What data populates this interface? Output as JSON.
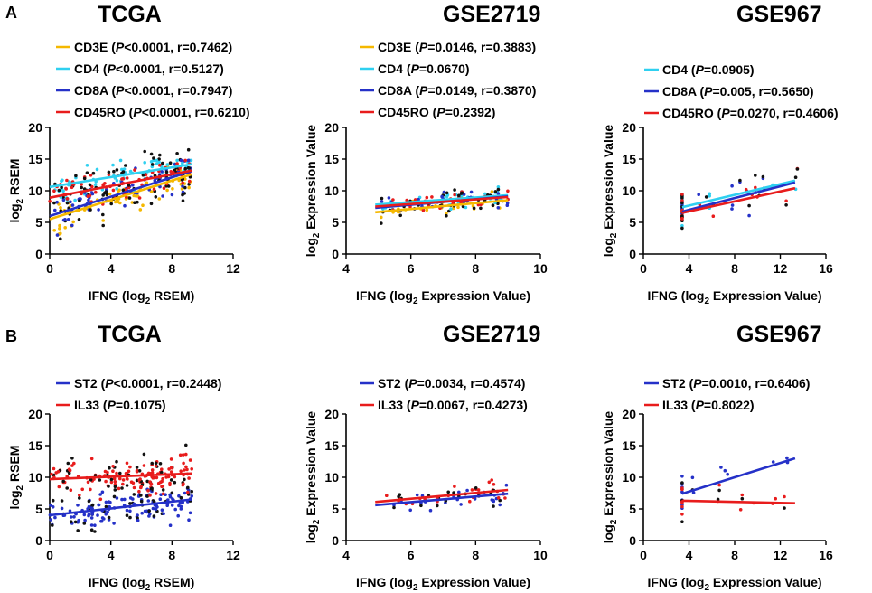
{
  "figure": {
    "panel_labels": [
      "A",
      "B"
    ]
  },
  "chart_data": [
    {
      "type": "scatter",
      "panel": "A",
      "title": "TCGA",
      "xlabel": "IFNG (log₂ RSEM)",
      "ylabel": "log₂ RSEM",
      "xlim": [
        0,
        12
      ],
      "ylim": [
        0,
        20
      ],
      "xticks": [
        "0",
        "4",
        "8",
        "12"
      ],
      "yticks": [
        "0",
        "5",
        "10",
        "15",
        "20"
      ],
      "series": [
        {
          "name": "CD3E",
          "legend": "CD3E (P<0.0001, r=0.7462)",
          "color": "#f5b800",
          "fit": [
            [
              0,
              5.5
            ],
            [
              9.3,
              12.6
            ]
          ],
          "n_points": 70
        },
        {
          "name": "CD4",
          "legend": "CD4 (P<0.0001, r=0.5127)",
          "color": "#2fd0f0",
          "fit": [
            [
              0,
              10.6
            ],
            [
              9.3,
              14.2
            ]
          ],
          "n_points": 70
        },
        {
          "name": "CD8A",
          "legend": "CD8A (P<0.0001, r=0.7947)",
          "color": "#2531c8",
          "fit": [
            [
              0,
              6.0
            ],
            [
              9.3,
              13.1
            ]
          ],
          "n_points": 70
        },
        {
          "name": "CD45RO",
          "legend": "CD45RO (P<0.0001, r=0.6210)",
          "color": "#e81c1c",
          "fit": [
            [
              0,
              8.9
            ],
            [
              9.3,
              13.2
            ]
          ],
          "n_points": 70
        }
      ]
    },
    {
      "type": "scatter",
      "panel": "A",
      "title": "GSE2719",
      "xlabel": "IFNG (log₂ Expression Value)",
      "ylabel": "log₂ Expression Value",
      "xlim": [
        4,
        10
      ],
      "ylim": [
        0,
        20
      ],
      "xticks": [
        "4",
        "6",
        "8",
        "10"
      ],
      "yticks": [
        "0",
        "5",
        "10",
        "15",
        "20"
      ],
      "series": [
        {
          "name": "CD3E",
          "legend": "CD3E (P=0.0146, r=0.3883)",
          "color": "#f5b800",
          "fit": [
            [
              4.9,
              6.6
            ],
            [
              9.0,
              8.5
            ]
          ],
          "n_points": 30
        },
        {
          "name": "CD4",
          "legend": "CD4 (P=0.0670)",
          "color": "#2fd0f0",
          "fit": [
            [
              4.9,
              7.8
            ],
            [
              9.0,
              9.3
            ]
          ],
          "n_points": 30
        },
        {
          "name": "CD8A",
          "legend": "CD8A (P=0.0149, r=0.3870)",
          "color": "#2531c8",
          "fit": [
            [
              4.9,
              7.3
            ],
            [
              9.0,
              9.1
            ]
          ],
          "n_points": 30
        },
        {
          "name": "CD45RO",
          "legend": "CD45RO (P=0.2392)",
          "color": "#e81c1c",
          "fit": [
            [
              4.9,
              7.5
            ],
            [
              9.0,
              9.0
            ]
          ],
          "n_points": 30
        }
      ]
    },
    {
      "type": "scatter",
      "panel": "A",
      "title": "GSE967",
      "xlabel": "IFNG (log₂ Expression Value)",
      "ylabel": "log₂ Expression Value",
      "xlim": [
        0,
        16
      ],
      "ylim": [
        0,
        20
      ],
      "xticks": [
        "0",
        "4",
        "8",
        "12",
        "16"
      ],
      "yticks": [
        "0",
        "5",
        "10",
        "15",
        "20"
      ],
      "series": [
        {
          "name": "CD4",
          "legend": "CD4 (P=0.0905)",
          "color": "#2fd0f0",
          "fit": [
            [
              3.4,
              7.4
            ],
            [
              13.3,
              11.6
            ]
          ],
          "n_points": 16
        },
        {
          "name": "CD8A",
          "legend": "CD8A (P=0.005, r=0.5650)",
          "color": "#2531c8",
          "fit": [
            [
              3.4,
              6.7
            ],
            [
              13.3,
              11.3
            ]
          ],
          "n_points": 16
        },
        {
          "name": "CD45RO",
          "legend": "CD45RO (P=0.0270, r=0.4606)",
          "color": "#e81c1c",
          "fit": [
            [
              3.4,
              6.5
            ],
            [
              13.3,
              10.4
            ]
          ],
          "n_points": 16
        }
      ]
    },
    {
      "type": "scatter",
      "panel": "B",
      "title": "TCGA",
      "xlabel": "IFNG (log₂ RSEM)",
      "ylabel": "log₂ RSEM",
      "xlim": [
        0,
        12
      ],
      "ylim": [
        0,
        20
      ],
      "xticks": [
        "0",
        "4",
        "8",
        "12"
      ],
      "yticks": [
        "0",
        "5",
        "10",
        "15",
        "20"
      ],
      "series": [
        {
          "name": "ST2",
          "legend": "ST2 (P<0.0001, r=0.2448)",
          "color": "#2531c8",
          "fit": [
            [
              0,
              4.0
            ],
            [
              9.3,
              6.5
            ]
          ],
          "n_points": 130
        },
        {
          "name": "IL33",
          "legend": "IL33 (P=0.1075)",
          "color": "#e81c1c",
          "fit": [
            [
              0,
              9.7
            ],
            [
              9.3,
              10.6
            ]
          ],
          "n_points": 130
        }
      ]
    },
    {
      "type": "scatter",
      "panel": "B",
      "title": "GSE2719",
      "xlabel": "IFNG (log₂ Expression Value)",
      "ylabel": "log₂ Expression Value",
      "xlim": [
        4,
        10
      ],
      "ylim": [
        0,
        20
      ],
      "xticks": [
        "4",
        "6",
        "8",
        "10"
      ],
      "yticks": [
        "0",
        "5",
        "10",
        "15",
        "20"
      ],
      "series": [
        {
          "name": "ST2",
          "legend": "ST2 (P=0.0034, r=0.4574)",
          "color": "#2531c8",
          "fit": [
            [
              4.9,
              5.6
            ],
            [
              9.0,
              7.4
            ]
          ],
          "n_points": 28
        },
        {
          "name": "IL33",
          "legend": "IL33 (P=0.0067, r=0.4273)",
          "color": "#e81c1c",
          "fit": [
            [
              4.9,
              6.1
            ],
            [
              9.0,
              8.0
            ]
          ],
          "n_points": 28
        }
      ]
    },
    {
      "type": "scatter",
      "panel": "B",
      "title": "GSE967",
      "xlabel": "IFNG (log₂ Expression Value)",
      "ylabel": "log₂ Expression Value",
      "xlim": [
        0,
        16
      ],
      "ylim": [
        0,
        20
      ],
      "xticks": [
        "0",
        "4",
        "8",
        "12",
        "16"
      ],
      "yticks": [
        "0",
        "5",
        "10",
        "15",
        "20"
      ],
      "series": [
        {
          "name": "ST2",
          "legend": "ST2 (P=0.0010, r=0.6406)",
          "color": "#2531c8",
          "fit": [
            [
              3.4,
              7.4
            ],
            [
              13.3,
              13.0
            ]
          ],
          "n_points": 16
        },
        {
          "name": "IL33",
          "legend": "IL33 (P=0.8022)",
          "color": "#e81c1c",
          "fit": [
            [
              3.4,
              6.3
            ],
            [
              13.3,
              5.9
            ]
          ],
          "n_points": 16
        }
      ]
    }
  ]
}
